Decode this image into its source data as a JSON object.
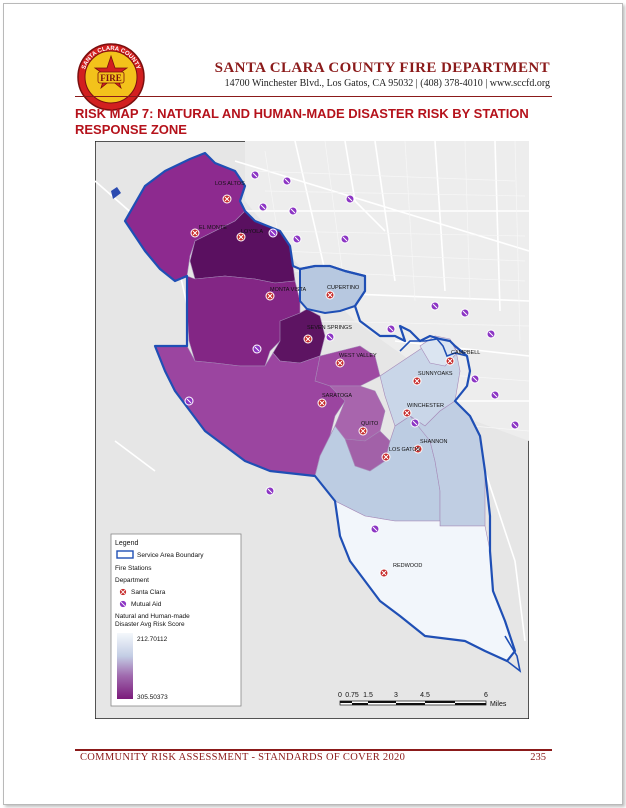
{
  "header": {
    "department_name": "SANTA CLARA COUNTY FIRE DEPARTMENT",
    "address_line": "14700 Winchester Blvd., Los Gatos, CA 95032 | (408) 378-4010 | www.sccfd.org",
    "logo_text_top": "SANTA CLARA COUNTY",
    "logo_text_center": "FIRE"
  },
  "title": {
    "line1": "RISK MAP 7: NATURAL AND HUMAN-MADE DISASTER RISK BY STATION",
    "line2": "RESPONSE ZONE"
  },
  "map": {
    "labels": {
      "los_altos": "LOS ALTOS",
      "el_monte": "EL MONTE",
      "loyola": "LOYOLA",
      "monta_vista": "MONTA VISTA",
      "cupertino": "CUPERTINO",
      "seven_springs": "SEVEN SPRINGS",
      "west_valley": "WEST VALLEY",
      "campbell": "CAMPBELL",
      "sunnyoaks": "SUNNYOAKS",
      "saratoga": "SARATOGA",
      "winchester": "WINCHESTER",
      "quito": "QUITO",
      "shannon": "SHANNON",
      "los_gatos": "LOS GATOS",
      "redwood": "REDWOOD"
    },
    "colors": {
      "boundary": "#1f4fb5",
      "santa_clara_station": "#8b1a1a",
      "mutual_aid_station": "#7a2ab0",
      "risk_low": "#f4f8fc",
      "risk_high": "#7b1a7b"
    }
  },
  "legend": {
    "title": "Legend",
    "service_area": "Service Area Boundary",
    "fire_stations": "Fire Stations",
    "department": "Department",
    "santa_clara": "Santa Clara",
    "mutual_aid": "Mutual Aid",
    "risk_title_line1": "Natural and Human-made",
    "risk_title_line2": "Disaster Avg Risk Score",
    "risk_min": "212.70112",
    "risk_max": "305.50373"
  },
  "scale_bar": {
    "ticks": [
      "0",
      "0.75",
      "1.5",
      "3",
      "4.5",
      "6"
    ],
    "unit": "Miles"
  },
  "footer": {
    "text": "COMMUNITY RISK ASSESSMENT - STANDARDS OF COVER 2020",
    "page": "235"
  }
}
